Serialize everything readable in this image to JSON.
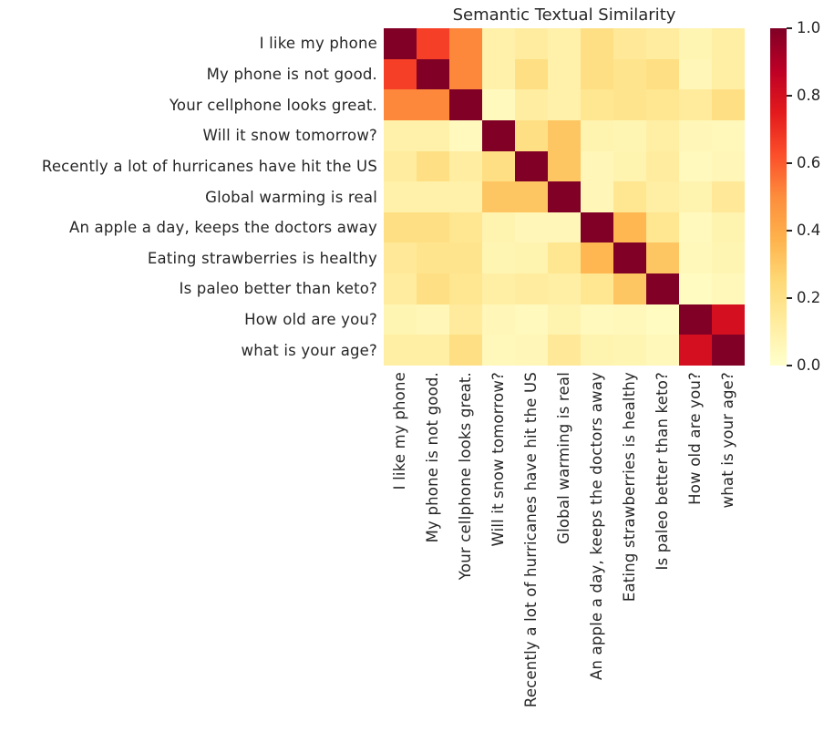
{
  "title": "Semantic Textual Similarity",
  "chart_data": {
    "type": "heatmap",
    "title": "Semantic Textual Similarity",
    "labels": [
      "I like my phone",
      "My phone is not good.",
      "Your cellphone looks great.",
      "Will it snow tomorrow?",
      "Recently a lot of hurricanes have hit the US",
      "Global warming is real",
      "An apple a day, keeps the doctors away",
      "Eating strawberries is healthy",
      "Is paleo better than keto?",
      "How old are you?",
      "what is your age?"
    ],
    "matrix": [
      [
        1.0,
        0.66,
        0.51,
        0.1,
        0.13,
        0.1,
        0.21,
        0.15,
        0.13,
        0.07,
        0.11
      ],
      [
        0.66,
        1.0,
        0.51,
        0.1,
        0.21,
        0.1,
        0.21,
        0.18,
        0.21,
        0.06,
        0.11
      ],
      [
        0.51,
        0.51,
        1.0,
        0.04,
        0.12,
        0.1,
        0.17,
        0.18,
        0.17,
        0.14,
        0.21
      ],
      [
        0.1,
        0.1,
        0.04,
        1.0,
        0.21,
        0.31,
        0.08,
        0.07,
        0.11,
        0.06,
        0.05
      ],
      [
        0.13,
        0.21,
        0.12,
        0.21,
        1.0,
        0.31,
        0.06,
        0.08,
        0.13,
        0.04,
        0.06
      ],
      [
        0.1,
        0.1,
        0.1,
        0.31,
        0.31,
        1.0,
        0.06,
        0.17,
        0.11,
        0.08,
        0.15
      ],
      [
        0.21,
        0.21,
        0.17,
        0.08,
        0.06,
        0.06,
        1.0,
        0.36,
        0.17,
        0.04,
        0.08
      ],
      [
        0.15,
        0.18,
        0.18,
        0.07,
        0.08,
        0.17,
        0.36,
        1.0,
        0.31,
        0.05,
        0.07
      ],
      [
        0.13,
        0.21,
        0.17,
        0.11,
        0.13,
        0.11,
        0.17,
        0.31,
        1.0,
        0.03,
        0.05
      ],
      [
        0.07,
        0.06,
        0.14,
        0.06,
        0.04,
        0.08,
        0.04,
        0.05,
        0.03,
        1.0,
        0.8
      ],
      [
        0.11,
        0.11,
        0.21,
        0.05,
        0.06,
        0.15,
        0.08,
        0.07,
        0.05,
        0.8,
        1.0
      ]
    ],
    "value_range": [
      0.0,
      1.0
    ],
    "colormap": {
      "name": "YlOrRd",
      "stops": [
        [
          0.0,
          "#ffffcc"
        ],
        [
          0.125,
          "#ffeda0"
        ],
        [
          0.25,
          "#fed976"
        ],
        [
          0.375,
          "#feb24c"
        ],
        [
          0.5,
          "#fd8d3c"
        ],
        [
          0.625,
          "#fc4e2a"
        ],
        [
          0.75,
          "#e31a1c"
        ],
        [
          0.875,
          "#bd0026"
        ],
        [
          1.0,
          "#800026"
        ]
      ]
    },
    "colorbar_ticks": [
      "1.0",
      "0.8",
      "0.6",
      "0.4",
      "0.2",
      "0.0"
    ],
    "legend_position": "right",
    "grid": false,
    "text_color": "#262626",
    "background": "#ffffff"
  }
}
